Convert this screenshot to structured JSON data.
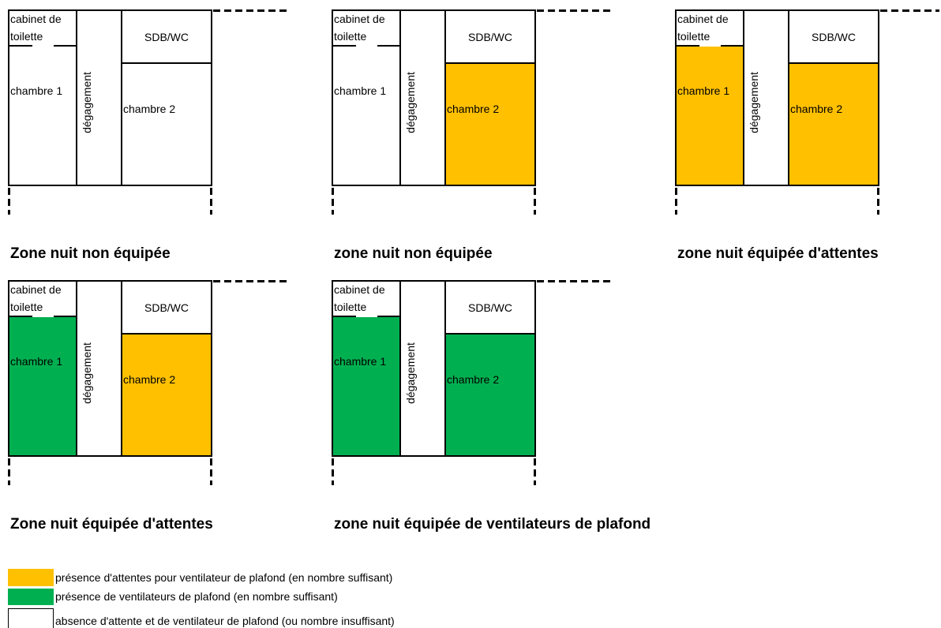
{
  "room_labels": {
    "cabinet": "cabinet de toilette",
    "degagement": "dégagement",
    "sdb": "SDB/WC",
    "chambre1": "chambre 1",
    "chambre2": "chambre 2"
  },
  "panels": [
    {
      "caption": "Zone nuit non équipée",
      "chambre1_fill": "#FFFFFF",
      "chambre2_fill": "#FFFFFF"
    },
    {
      "caption": "zone nuit non équipée",
      "chambre1_fill": "#FFFFFF",
      "chambre2_fill": "#FFC000"
    },
    {
      "caption": "zone nuit équipée d'attentes",
      "chambre1_fill": "#FFC000",
      "chambre2_fill": "#FFC000"
    },
    {
      "caption": "Zone nuit équipée d'attentes",
      "chambre1_fill": "#00B050",
      "chambre2_fill": "#FFC000"
    },
    {
      "caption": "zone nuit équipée de ventilateurs de plafond",
      "chambre1_fill": "#00B050",
      "chambre2_fill": "#00B050"
    }
  ],
  "legend": [
    {
      "color": "#FFC000",
      "text": "présence d'attentes pour ventilateur de plafond (en nombre suffisant)"
    },
    {
      "color": "#00B050",
      "text": "présence de ventilateurs de plafond (en nombre suffisant)"
    },
    {
      "color": "#FFFFFF",
      "text": "absence d'attente et de ventilateur de plafond (ou nombre insuffisant)"
    }
  ]
}
